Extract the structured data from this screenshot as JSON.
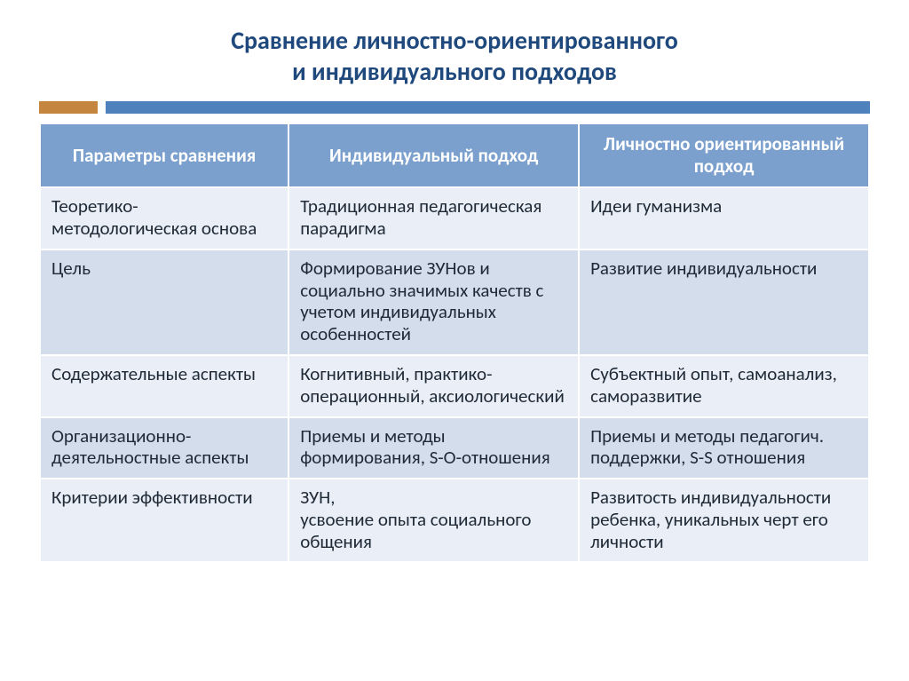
{
  "slide": {
    "title_line1": "Сравнение личностно-ориентированного",
    "title_line2": "и индивидуального подходов",
    "title_color": "#1f497d",
    "title_fontsize": 28,
    "accent": {
      "left_color": "#c4853f",
      "right_color": "#4f81bd",
      "left_width_pct": 7,
      "gap_pct": 1
    }
  },
  "table": {
    "header_bg": "#7ba0cd",
    "header_text_color": "#ffffff",
    "row_odd_bg": "#e9eef7",
    "row_even_bg": "#d3ddec",
    "cell_text_color": "#1f2a36",
    "fontsize": 21,
    "header_fontsize": 21,
    "col_widths_pct": [
      30,
      35,
      35
    ],
    "columns": [
      "Параметры сравнения",
      "Индивидуальный подход",
      "Личностно ориентированный подход"
    ],
    "rows": [
      [
        "Теоретико-методологическая основа",
        "Традиционная педагогическая парадигма",
        "Идеи гуманизма"
      ],
      [
        "Цель",
        "Формирование ЗУНов и социально значимых качеств с учетом индивидуальных особенностей",
        "Развитие индивидуальности"
      ],
      [
        "Содержательные аспекты",
        "Когнитивный, практико-операционный, аксиологический",
        "Субъектный опыт, самоанализ, саморазвитие"
      ],
      [
        "Организационно-деятельностные аспекты",
        "Приемы и методы формирования, S-O-отношения",
        "Приемы и методы педагогич. поддержки, S-S отношения"
      ],
      [
        "Критерии эффективности",
        "ЗУН,\nусвоение опыта социального общения",
        "Развитость индивидуальности ребенка, уникальных черт его личности"
      ]
    ]
  }
}
